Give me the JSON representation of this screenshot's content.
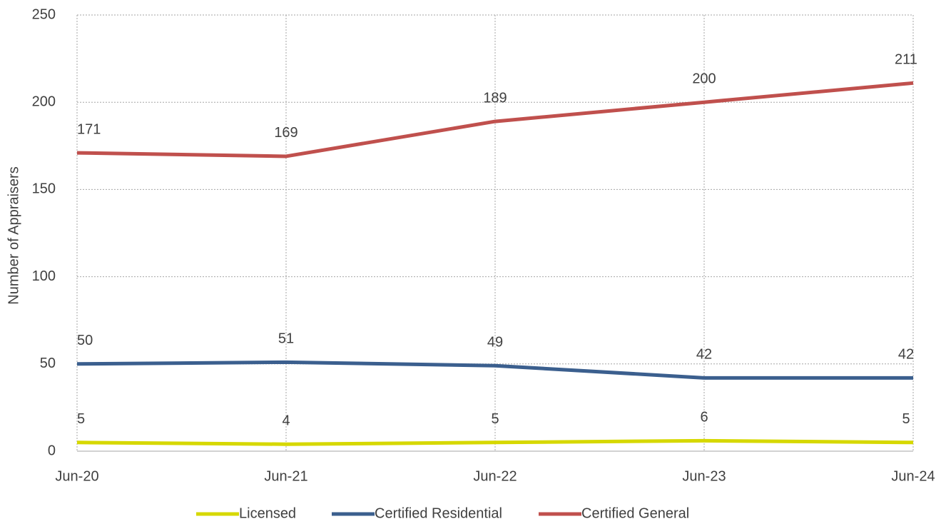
{
  "chart_data": {
    "type": "line",
    "y_label": "Number of Appraisers",
    "categories": [
      "Jun-20",
      "Jun-21",
      "Jun-22",
      "Jun-23",
      "Jun-24"
    ],
    "series": [
      {
        "name": "Licensed",
        "color": "#d6d800",
        "values": [
          5,
          4,
          5,
          6,
          5
        ]
      },
      {
        "name": "Certified Residential",
        "color": "#3b5f8e",
        "values": [
          50,
          51,
          49,
          42,
          42
        ]
      },
      {
        "name": "Certified General",
        "color": "#c0504d",
        "values": [
          171,
          169,
          189,
          200,
          211
        ]
      }
    ],
    "ylim": [
      0,
      250
    ],
    "yticks": [
      0,
      50,
      100,
      150,
      200,
      250
    ],
    "grid": true,
    "legend": "bottom"
  }
}
